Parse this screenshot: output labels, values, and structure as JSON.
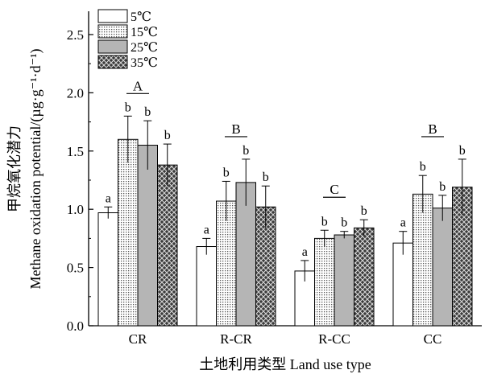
{
  "chart_data": {
    "type": "bar",
    "xlabel": "土地利用类型 Land use type",
    "ylabel": "Methane oxidation potential/(µg·g⁻¹·d⁻¹)",
    "ylabel_zh": "甲烷氧化潜力",
    "ylim": [
      0,
      2.7
    ],
    "yticks": [
      "0.0",
      "0.5",
      "1.0",
      "1.5",
      "2.0",
      "2.5"
    ],
    "categories": [
      "CR",
      "R-CR",
      "R-CC",
      "CC"
    ],
    "series": [
      {
        "name": "5℃",
        "pattern": "white",
        "values": [
          0.97,
          0.68,
          0.47,
          0.71
        ],
        "errors": [
          0.05,
          0.07,
          0.09,
          0.1
        ],
        "labels": [
          "a",
          "a",
          "a",
          "a"
        ]
      },
      {
        "name": "15℃",
        "pattern": "dots",
        "values": [
          1.6,
          1.07,
          0.75,
          1.13
        ],
        "errors": [
          0.2,
          0.17,
          0.07,
          0.16
        ],
        "labels": [
          "b",
          "b",
          "b",
          "b"
        ]
      },
      {
        "name": "25℃",
        "pattern": "gray",
        "values": [
          1.55,
          1.23,
          0.78,
          1.01
        ],
        "errors": [
          0.21,
          0.2,
          0.03,
          0.11
        ],
        "labels": [
          "b",
          "b",
          "b",
          "b"
        ]
      },
      {
        "name": "35℃",
        "pattern": "crosshatch",
        "values": [
          1.38,
          1.02,
          0.84,
          1.19
        ],
        "errors": [
          0.18,
          0.18,
          0.07,
          0.24
        ],
        "labels": [
          "b",
          "b",
          "b",
          "b"
        ]
      }
    ],
    "group_labels": [
      "A",
      "B",
      "C",
      "B"
    ],
    "legend_position": "top-left",
    "grid": false
  }
}
